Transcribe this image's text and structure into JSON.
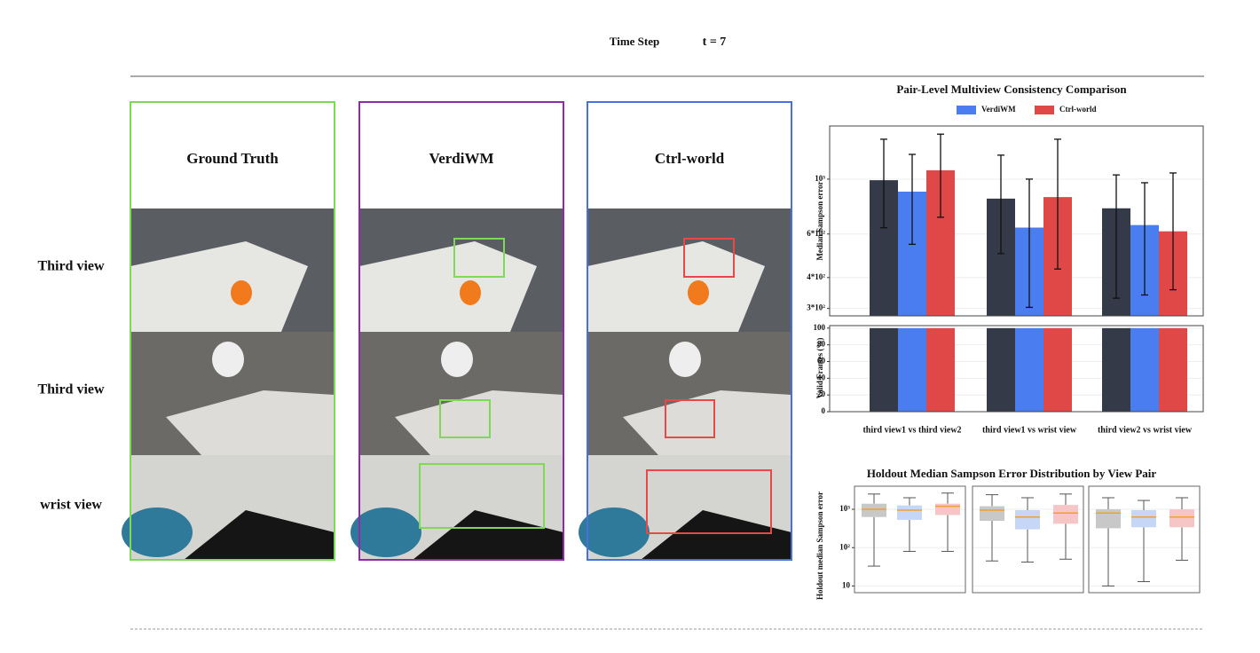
{
  "header": {
    "label": "Time Step",
    "value": "t = 7"
  },
  "panels": [
    {
      "title": "Ground Truth"
    },
    {
      "title": "VerdiWM"
    },
    {
      "title": "Ctrl-world"
    }
  ],
  "rows": [
    "Third view",
    "Third view",
    "wrist view"
  ],
  "chart_data": [
    {
      "type": "bar",
      "title": "Pair-Level Multiview Consistency Comparison",
      "ylabel": "Median Sampson error",
      "log_scale": true,
      "grid": true,
      "categories": [
        "third view1 vs third view2",
        "third view1 vs wrist view",
        "third view2 vs wrist view"
      ],
      "series": [
        {
          "color": "#343a48",
          "values": [
            990,
            834,
            762
          ],
          "errors": [
            [
              636,
              1450
            ],
            [
              500,
              1250
            ],
            [
              330,
              1040
            ]
          ]
        },
        {
          "name": "VerdiWM",
          "color": "#4a7ef0",
          "values": [
            890,
            637,
            652
          ],
          "errors": [
            [
              545,
              1259
            ],
            [
              303,
              1000
            ],
            [
              340,
              967
            ]
          ]
        },
        {
          "name": "Ctrl-world",
          "color": "#e04848",
          "values": [
            1086,
            846,
            615
          ],
          "errors": [
            [
              701,
              1520
            ],
            [
              433,
              1450
            ],
            [
              357,
              1059
            ]
          ]
        }
      ],
      "ylim": [
        280,
        1640
      ],
      "yticks": [
        {
          "value": 300,
          "label": "3*10²"
        },
        {
          "value": 400,
          "label": "4*10²"
        },
        {
          "value": 600,
          "label": "6*10²"
        },
        {
          "value": 1000,
          "label": "10³"
        }
      ]
    },
    {
      "type": "bar",
      "ylabel": "Valid Frames (%)",
      "log_scale": false,
      "grid": true,
      "series": [
        {
          "color": "#343a48",
          "values": [
            100,
            100,
            100
          ]
        },
        {
          "color": "#4a7ef0",
          "values": [
            100,
            100,
            100
          ]
        },
        {
          "color": "#e04848",
          "values": [
            100,
            100,
            100
          ]
        }
      ],
      "ylim": [
        0,
        103
      ],
      "yticks": [
        0,
        20,
        40,
        60,
        80,
        100
      ]
    },
    {
      "type": "box",
      "title": "Holdout Median Sampson Error Distribution by View Pair",
      "ylabel": "Holdout median Sampson error",
      "log_scale": true,
      "grid": true,
      "median_color": "#f0a030",
      "series": [
        {
          "color": "#c8c8c8",
          "boxes": [
            {
              "whislo": 33,
              "q1": 630,
              "med": 1000,
              "q3": 1400,
              "whishi": 2500
            },
            {
              "whislo": 45,
              "q1": 500,
              "med": 950,
              "q3": 1200,
              "whishi": 2400
            },
            {
              "whislo": 10,
              "q1": 320,
              "med": 800,
              "q3": 1000,
              "whishi": 2000
            }
          ]
        },
        {
          "color": "#c6d6f6",
          "boxes": [
            {
              "whislo": 80,
              "q1": 530,
              "med": 950,
              "q3": 1260,
              "whishi": 2000
            },
            {
              "whislo": 42,
              "q1": 300,
              "med": 630,
              "q3": 950,
              "whishi": 2000
            },
            {
              "whislo": 13,
              "q1": 340,
              "med": 630,
              "q3": 950,
              "whishi": 1700
            }
          ]
        },
        {
          "color": "#f6c6c6",
          "boxes": [
            {
              "whislo": 80,
              "q1": 710,
              "med": 1200,
              "q3": 1400,
              "whishi": 2650
            },
            {
              "whislo": 50,
              "q1": 420,
              "med": 800,
              "q3": 1300,
              "whishi": 2500
            },
            {
              "whislo": 47,
              "q1": 340,
              "med": 630,
              "q3": 1000,
              "whishi": 2000
            }
          ]
        }
      ],
      "ylim": [
        6.7,
        4000
      ],
      "yticks": [
        10,
        {
          "value": 100,
          "label": "10²"
        },
        {
          "value": 1000,
          "label": "10³"
        }
      ]
    }
  ]
}
